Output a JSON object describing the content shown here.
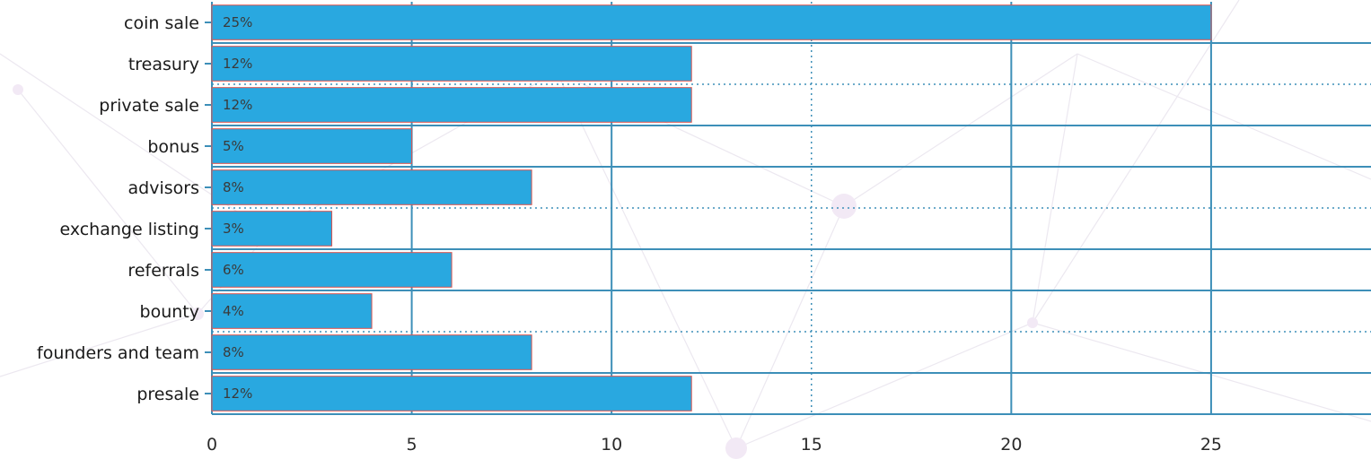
{
  "chart_data": {
    "type": "bar",
    "orientation": "horizontal",
    "categories": [
      "coin sale",
      "treasury",
      "private sale",
      "bonus",
      "advisors",
      "exchange listing",
      "referrals",
      "bounty",
      "founders and team",
      "presale"
    ],
    "values": [
      25,
      12,
      12,
      5,
      8,
      3,
      6,
      4,
      8,
      12
    ],
    "data_labels": [
      "25%",
      "12%",
      "12%",
      "5%",
      "8%",
      "3%",
      "6%",
      "4%",
      "8%",
      "12%"
    ],
    "x_ticks": [
      "0",
      "5",
      "10",
      "15",
      "20",
      "25"
    ],
    "xlim": [
      0,
      29
    ],
    "title": "",
    "xlabel": "",
    "ylabel": "",
    "grid": true,
    "legend": "none",
    "colors": {
      "bar": "#29a8e0",
      "bar_edge": "#d9534f",
      "grid": "#3d8fb8"
    }
  }
}
